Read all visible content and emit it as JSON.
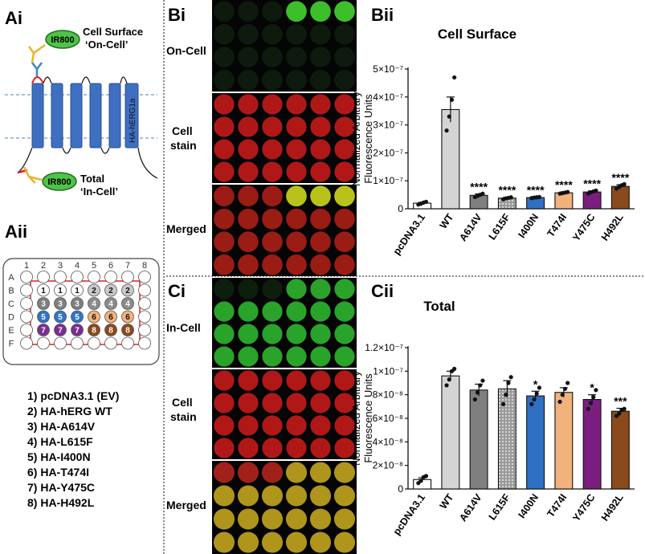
{
  "panel_labels": {
    "ai": "Ai",
    "aii": "Aii",
    "bi": "Bi",
    "bii": "Bii",
    "ci": "Ci",
    "cii": "Cii"
  },
  "schematic": {
    "ir_top": "IR800",
    "ir_bottom": "IR800",
    "cell_surface_line1": "Cell Surface",
    "cell_surface_line2": "‘On-Cell’",
    "total_line1": "Total",
    "total_line2": "‘In-Cell’",
    "channel_label": "HA-hERG1a"
  },
  "plate": {
    "col_labels": [
      "1",
      "2",
      "3",
      "4",
      "5",
      "6",
      "7",
      "8"
    ],
    "row_labels": [
      "A",
      "B",
      "C",
      "D",
      "E",
      "F"
    ],
    "colors": {
      "1": "#ffffff",
      "2": "#c9c9c9",
      "3": "#7f7f7f",
      "4": "#8c8c8c",
      "5": "#2f75c8",
      "6": "#f2b27c",
      "7": "#7b2d91",
      "8": "#8b4a1c"
    }
  },
  "legend": [
    "1) pcDNA3.1 (EV)",
    "2) HA-hERG WT",
    "3) HA-A614V",
    "4) HA-L615F",
    "5) HA-I400N",
    "6) HA-T474I",
    "7) HA-Y475C",
    "8) HA-H492L"
  ],
  "image_panels": {
    "bi": {
      "on_cell": "On-Cell",
      "cell": "Cell",
      "stain": "stain",
      "merged": "Merged"
    },
    "ci": {
      "in_cell": "In-Cell",
      "cell": "Cell",
      "stain": "stain",
      "merged": "Merged"
    }
  },
  "chart_data": [
    {
      "id": "bii",
      "type": "bar",
      "title": "Cell Surface",
      "ylabel_line1": "Normalized  Arbitrary",
      "ylabel_line2": "Fluorescence Units",
      "categories": [
        "pcDNA3.1",
        "WT",
        "A614V",
        "L615F",
        "I400N",
        "T474I",
        "Y475C",
        "H492L"
      ],
      "values": [
        2e-08,
        3.55e-07,
        4.8e-08,
        3.8e-08,
        4e-08,
        5.7e-08,
        6e-08,
        8e-08
      ],
      "errors": [
        3e-09,
        4.5e-08,
        5e-09,
        3e-09,
        2e-09,
        3e-09,
        4e-09,
        6e-09
      ],
      "points": [
        [
          1.5e-08,
          1.8e-08,
          2.2e-08,
          2.5e-08
        ],
        [
          2.8e-07,
          3.3e-07,
          3.9e-07,
          4.7e-07
        ],
        [
          4.2e-08,
          4.6e-08,
          5e-08,
          5.4e-08
        ],
        [
          3.4e-08,
          3.7e-08,
          3.9e-08,
          4.1e-08
        ],
        [
          3.8e-08,
          4e-08,
          4.1e-08,
          4.2e-08
        ],
        [
          5.4e-08,
          5.6e-08,
          5.8e-08,
          6e-08
        ],
        [
          5.5e-08,
          5.9e-08,
          6.2e-08,
          6.5e-08
        ],
        [
          7.2e-08,
          7.8e-08,
          8.4e-08,
          8.8e-08
        ]
      ],
      "significance": [
        "",
        "",
        "****",
        "****",
        "****",
        "****",
        "****",
        "****"
      ],
      "yticks": [
        0,
        1e-07,
        2e-07,
        3e-07,
        4e-07,
        5e-07
      ],
      "ytick_labels": [
        "0",
        "1×10⁻⁷",
        "2×10⁻⁷",
        "3×10⁻⁷",
        "4×10⁻⁷",
        "5×10⁻⁷"
      ],
      "ylim": [
        0,
        5e-07
      ]
    },
    {
      "id": "cii",
      "type": "bar",
      "title": "Total",
      "ylabel_line1": "Normalized  Arbitrary",
      "ylabel_line2": "Fluorescence Units",
      "categories": [
        "pcDNA3.1",
        "WT",
        "A614V",
        "L615F",
        "I400N",
        "T474I",
        "Y475C",
        "H492L"
      ],
      "values": [
        8e-09,
        9.6e-08,
        8.4e-08,
        8.5e-08,
        7.9e-08,
        8.2e-08,
        7.6e-08,
        6.6e-08
      ],
      "errors": [
        1.5e-09,
        4e-09,
        5e-09,
        7e-09,
        4e-09,
        4e-09,
        4e-09,
        2.5e-09
      ],
      "points": [
        [
          5e-09,
          7e-09,
          1e-08,
          1.1e-08
        ],
        [
          8.8e-08,
          9.3e-08,
          1e-07,
          1.02e-07
        ],
        [
          7.6e-08,
          8.2e-08,
          8.8e-08,
          9.2e-08
        ],
        [
          7.2e-08,
          8e-08,
          9e-08,
          9.5e-08
        ],
        [
          7.2e-08,
          7.6e-08,
          8.1e-08,
          8.6e-08
        ],
        [
          7.4e-08,
          8e-08,
          8.5e-08,
          9e-08
        ],
        [
          6.8e-08,
          7.3e-08,
          7.8e-08,
          8.4e-08
        ],
        [
          6.2e-08,
          6.4e-08,
          6.7e-08,
          6.8e-08
        ]
      ],
      "significance": [
        "",
        "",
        "",
        "",
        "*",
        "",
        "*",
        "***"
      ],
      "yticks": [
        0,
        2e-08,
        4e-08,
        6e-08,
        8e-08,
        1e-07,
        1.2e-07
      ],
      "ytick_labels": [
        "0",
        "2×10⁻⁸",
        "4×10⁻⁸",
        "6×10⁻⁸",
        "8×10⁻⁸",
        "1×10⁻⁷",
        "1.2×10⁻⁷"
      ],
      "ylim": [
        0,
        1.2e-07
      ]
    }
  ]
}
